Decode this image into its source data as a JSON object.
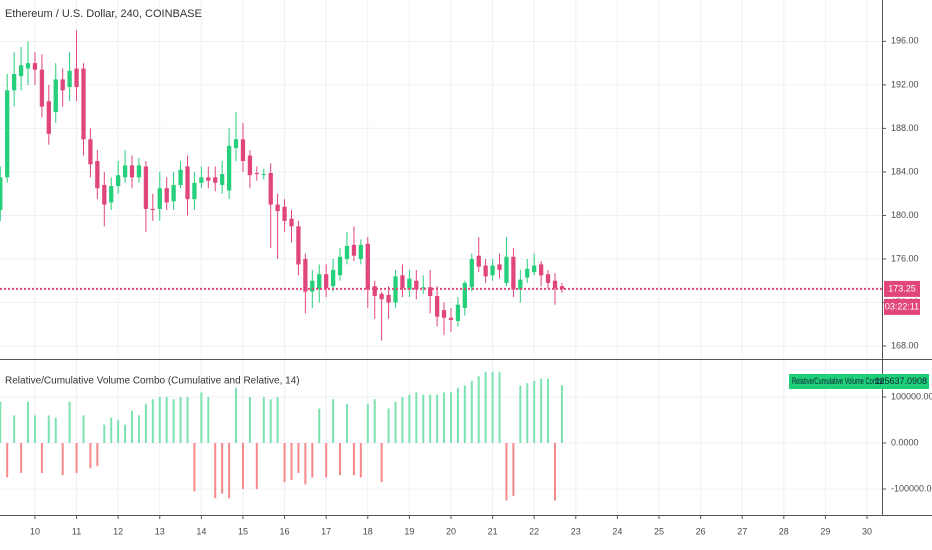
{
  "chart_data": [
    {
      "type": "candlestick",
      "title": "Ethereum / U.S. Dollar, 240, COINBASE",
      "x": [
        9.167,
        9.333,
        9.5,
        9.667,
        9.833,
        10,
        10.167,
        10.333,
        10.5,
        10.667,
        10.833,
        11,
        11.167,
        11.333,
        11.5,
        11.667,
        11.833,
        12,
        12.167,
        12.333,
        12.5,
        12.667,
        12.833,
        13,
        13.167,
        13.333,
        13.5,
        13.667,
        13.833,
        14,
        14.167,
        14.333,
        14.5,
        14.667,
        14.833,
        15,
        15.167,
        15.333,
        15.5,
        15.667,
        15.833,
        16,
        16.167,
        16.333,
        16.5,
        16.667,
        16.833,
        17,
        17.167,
        17.333,
        17.5,
        17.667,
        17.833,
        18,
        18.167,
        18.333,
        18.5,
        18.667,
        18.833,
        19,
        19.167,
        19.333,
        19.5,
        19.667,
        19.833,
        20,
        20.167,
        20.333,
        20.5,
        20.667,
        20.833,
        21,
        21.167,
        21.333,
        21.5,
        21.667,
        21.833,
        22,
        22.167,
        22.333,
        22.5,
        22.667
      ],
      "open": [
        180.5,
        183.5,
        191.5,
        192.8,
        193.5,
        194,
        193.4,
        190.5,
        189.5,
        192.5,
        191.8,
        193.5,
        193.5,
        187,
        185,
        182.8,
        181.2,
        182.7,
        183.5,
        184.6,
        183.5,
        184.5,
        180.6,
        180.6,
        182.5,
        181.3,
        182.8,
        184.5,
        181.5,
        183,
        183.5,
        183.5,
        182.8,
        182.3,
        186.2,
        187,
        185.5,
        183.9,
        183.8,
        183.9,
        181,
        180.8,
        179.7,
        179,
        176,
        173,
        173.2,
        174.6,
        173.5,
        174.5,
        176,
        177.3,
        176,
        177.4,
        173.5,
        172.8,
        172.7,
        172,
        174.5,
        173.2,
        174,
        173.4,
        173.4,
        172.6,
        171.3,
        170.6,
        170.3,
        171.5,
        173.4,
        176.3,
        175.4,
        174.5,
        175.5,
        173.8,
        176.2,
        173.2,
        174.3,
        174.8,
        175.5,
        174.6,
        174,
        173.5
      ],
      "high": [
        184.5,
        193,
        195,
        195.5,
        196,
        195,
        194.8,
        192,
        194,
        193.5,
        195,
        197,
        194,
        188,
        186,
        184,
        183.5,
        185,
        186,
        185.5,
        185.3,
        185,
        182,
        184,
        183.5,
        184,
        185,
        185.5,
        184,
        184.5,
        184.5,
        184.5,
        185,
        188,
        189.5,
        188.5,
        186,
        184.5,
        184.3,
        184.8,
        182,
        181.5,
        180.5,
        179.5,
        176.5,
        175,
        175.5,
        175.5,
        176,
        177,
        178.5,
        179,
        177.8,
        178,
        174,
        173,
        173.5,
        175,
        175.5,
        175,
        175,
        174.5,
        175,
        173.5,
        172,
        171.5,
        172.5,
        174,
        176.5,
        178,
        176,
        176,
        176.5,
        178,
        177,
        175,
        176,
        176.5,
        175.8,
        175,
        174.7,
        173.8
      ],
      "low": [
        179.5,
        183,
        190,
        191.5,
        192,
        192,
        189,
        186.5,
        188.5,
        190,
        190.5,
        190.5,
        185.5,
        183.5,
        181.5,
        179,
        180.5,
        182,
        183,
        182.5,
        183,
        178.5,
        179.5,
        179.5,
        180.5,
        180.5,
        182.5,
        180,
        180.5,
        182.5,
        182.5,
        182.2,
        182,
        181.5,
        185,
        184,
        182.5,
        183.2,
        183.3,
        177,
        176,
        178.5,
        177.5,
        174.5,
        171,
        171.5,
        172,
        172.5,
        173,
        174,
        175.5,
        175.8,
        175.5,
        171.5,
        170.5,
        168.5,
        170.5,
        171.5,
        172.5,
        172.5,
        172.3,
        172.8,
        171,
        169.8,
        169,
        169.3,
        169.8,
        170.8,
        173,
        174.8,
        173.8,
        174,
        174.2,
        173.5,
        172.5,
        172,
        173.8,
        174.5,
        173.5,
        173.3,
        171.8,
        172.9
      ],
      "close": [
        183.5,
        191.5,
        193,
        193.8,
        194,
        193.4,
        190,
        187.5,
        192.5,
        191.5,
        193.3,
        191.8,
        187,
        184.7,
        182.5,
        181,
        182.7,
        183.7,
        184.6,
        183.5,
        184.6,
        180.6,
        180.5,
        182.5,
        181.2,
        182.8,
        184.2,
        181.5,
        183,
        183.5,
        183.2,
        183,
        183.8,
        186.4,
        187,
        185,
        183.7,
        183.8,
        183.8,
        181,
        180.4,
        179.5,
        179,
        175.5,
        173,
        174,
        174.6,
        173.3,
        175,
        176.2,
        177.2,
        176.3,
        177.3,
        173.2,
        172.6,
        172.3,
        172,
        174.4,
        173.3,
        174.2,
        173.2,
        173.4,
        172.6,
        170.7,
        170.6,
        170.4,
        171.8,
        173.8,
        176,
        175.3,
        174.4,
        175.4,
        175,
        176.2,
        173.2,
        174.1,
        175.1,
        175.4,
        174.5,
        173.8,
        173.3,
        173.25
      ],
      "up_color": "#26cf7a",
      "down_color": "#e0457b",
      "xlim": [
        9.16,
        30.36
      ],
      "ylim": [
        166.9,
        199.8
      ],
      "yticks": [
        {
          "value": 168,
          "label": "168.00"
        },
        {
          "value": 172,
          "label": "172.00"
        },
        {
          "value": 176,
          "label": "176.00"
        },
        {
          "value": 180,
          "label": "180.00"
        },
        {
          "value": 184,
          "label": "184.00"
        },
        {
          "value": 188,
          "label": "188.00"
        },
        {
          "value": 192,
          "label": "192.00"
        },
        {
          "value": 196,
          "label": "196.00"
        }
      ],
      "grid": true,
      "last_price": {
        "value": 173.25,
        "countdown": "03:22:11",
        "color": "#e0457b"
      }
    },
    {
      "type": "bar",
      "title": "Relative/Cumulative Volume Combo (Cumulative and Relative, 14)",
      "legend": "Relative/Cumulative Volume Combo",
      "legend_color": "#1fd07a",
      "x": [
        9.167,
        9.333,
        9.5,
        9.667,
        9.833,
        10,
        10.167,
        10.333,
        10.5,
        10.667,
        10.833,
        11,
        11.167,
        11.333,
        11.5,
        11.667,
        11.833,
        12,
        12.167,
        12.333,
        12.5,
        12.667,
        12.833,
        13,
        13.167,
        13.333,
        13.5,
        13.667,
        13.833,
        14,
        14.167,
        14.333,
        14.5,
        14.667,
        14.833,
        15,
        15.167,
        15.333,
        15.5,
        15.667,
        15.833,
        16,
        16.167,
        16.333,
        16.5,
        16.667,
        16.833,
        17,
        17.167,
        17.333,
        17.5,
        17.667,
        17.833,
        18,
        18.167,
        18.333,
        18.5,
        18.667,
        18.833,
        19,
        19.167,
        19.333,
        19.5,
        19.667,
        19.833,
        20,
        20.167,
        20.333,
        20.5,
        20.667,
        20.833,
        21,
        21.167,
        21.333,
        21.5,
        21.667,
        21.833,
        22,
        22.167,
        22.333,
        22.5,
        22.667
      ],
      "values": [
        90000,
        -75000,
        60000,
        -65000,
        90000,
        60000,
        -65000,
        60000,
        55000,
        -70000,
        90000,
        -65000,
        60000,
        -55000,
        -50000,
        40000,
        55000,
        50000,
        40000,
        70000,
        60000,
        85000,
        95000,
        100000,
        100000,
        95000,
        100000,
        100000,
        -105000,
        110000,
        100000,
        -120000,
        -110000,
        -120000,
        120000,
        -100000,
        100000,
        -100000,
        100000,
        95000,
        100000,
        -85000,
        -80000,
        -65000,
        -90000,
        -75000,
        75000,
        -75000,
        95000,
        -70000,
        85000,
        -70000,
        -75000,
        85000,
        95000,
        -85000,
        75000,
        90000,
        100000,
        105000,
        110000,
        105000,
        105000,
        105000,
        110000,
        110000,
        120000,
        125000,
        135000,
        145000,
        155000,
        155000,
        155000,
        -125000,
        -115000,
        125000,
        130000,
        135000,
        140000,
        140000,
        -125000,
        125637.0908
      ],
      "up_color": "#7de2b0",
      "down_color": "#f5898a",
      "xlim": [
        9.16,
        30.36
      ],
      "ylim": [
        -156500,
        180400
      ],
      "yticks": [
        {
          "value": -100000,
          "label": "-100000.0000"
        },
        {
          "value": 0,
          "label": "0.0000"
        },
        {
          "value": 100000,
          "label": "100000.0000"
        }
      ],
      "xticks": [
        10,
        11,
        12,
        13,
        14,
        15,
        16,
        17,
        18,
        19,
        20,
        21,
        22,
        23,
        24,
        25,
        26,
        27,
        28,
        29,
        30
      ],
      "grid": true
    }
  ]
}
